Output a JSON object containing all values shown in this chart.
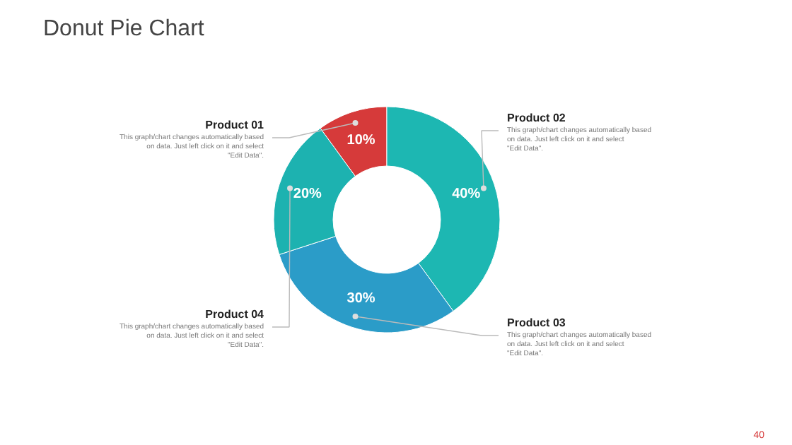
{
  "chart_data": {
    "type": "donut",
    "title": "Donut Pie Chart",
    "categories": [
      "Product 01",
      "Product 02",
      "Product 03",
      "Product 04"
    ],
    "values": [
      10,
      40,
      30,
      20
    ],
    "colors": [
      "#d63a3a",
      "#1db7b2",
      "#2b9cc8",
      "#1db2b0"
    ],
    "value_labels": [
      "10%",
      "40%",
      "30%",
      "20%"
    ],
    "annotations": [
      "This graph/chart changes automatically based on data. Just left click on it and select \"Edit Data\".",
      "This graph/chart changes automatically based on data. Just left click on it and select \"Edit Data\".",
      "This graph/chart changes automatically based on data. Just left click on it and select \"Edit Data\".",
      "This graph/chart changes automatically based on data. Just left click on it and select \"Edit Data\".",
      "40"
    ]
  }
}
